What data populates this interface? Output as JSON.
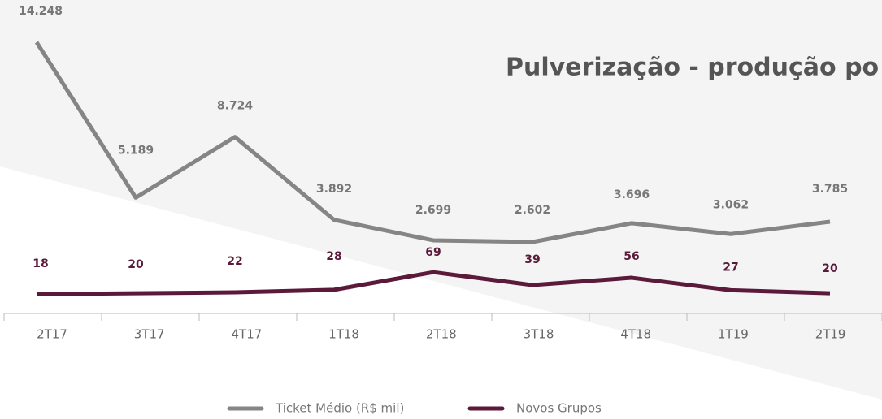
{
  "chart_data": {
    "type": "line",
    "title": "Pulverização - produção po",
    "categories": [
      "2T17",
      "3T17",
      "4T17",
      "1T18",
      "2T18",
      "3T18",
      "4T18",
      "1T19",
      "2T19"
    ],
    "series": [
      {
        "name": "Ticket Médio (R$ mil)",
        "color": "#858585",
        "values": [
          14248,
          5189,
          8724,
          3892,
          2699,
          2602,
          3696,
          3062,
          3785
        ],
        "value_labels": [
          "14.248",
          "5.189",
          "8.724",
          "3.892",
          "2.699",
          "2.602",
          "3.696",
          "3.062",
          "3.785"
        ]
      },
      {
        "name": "Novos Grupos",
        "color": "#5c1a3a",
        "axis": "y2",
        "values": [
          18,
          20,
          22,
          28,
          69,
          39,
          56,
          27,
          20
        ]
      }
    ],
    "ylim": [
      -1564,
      16710
    ],
    "y2lim": [
      -27,
      702
    ],
    "grid": false,
    "legend": "bottom"
  }
}
